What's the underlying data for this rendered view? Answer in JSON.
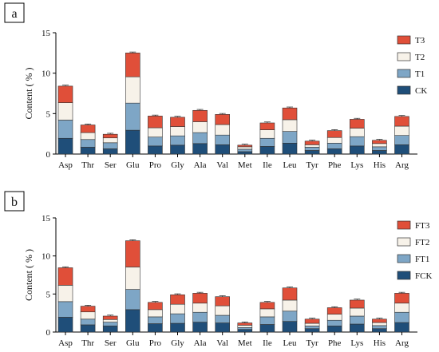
{
  "chart_data": [
    {
      "type": "bar",
      "stacked": true,
      "panel_label": "a",
      "ylabel": "Content ( % )",
      "xlabel": "",
      "ylim": [
        0,
        15
      ],
      "yticks": [
        "0",
        "5",
        "10",
        "15"
      ],
      "grid": false,
      "legend_position": "top-right",
      "categories": [
        "Asp",
        "Thr",
        "Ser",
        "Glu",
        "Pro",
        "Gly",
        "Ala",
        "Val",
        "Met",
        "Ile",
        "Leu",
        "Tyr",
        "Phe",
        "Lys",
        "His",
        "Arg"
      ],
      "series": [
        {
          "name": "CK",
          "color": "#1f4e79",
          "values": [
            1.95,
            0.85,
            0.65,
            2.95,
            1.0,
            1.1,
            1.3,
            1.15,
            0.3,
            0.95,
            1.35,
            0.45,
            0.65,
            1.0,
            0.45,
            1.15
          ]
        },
        {
          "name": "T1",
          "color": "#7ea6c6",
          "values": [
            2.25,
            0.95,
            0.75,
            3.35,
            1.1,
            1.15,
            1.35,
            1.2,
            0.3,
            1.0,
            1.45,
            0.4,
            0.7,
            1.15,
            0.45,
            1.15
          ]
        },
        {
          "name": "T2",
          "color": "#f7f2e9",
          "values": [
            2.15,
            0.85,
            0.6,
            3.25,
            1.15,
            1.15,
            1.35,
            1.3,
            0.3,
            1.05,
            1.45,
            0.3,
            0.7,
            1.05,
            0.4,
            1.15
          ]
        },
        {
          "name": "T3",
          "color": "#e04f39",
          "values": [
            2.05,
            0.95,
            0.45,
            2.95,
            1.45,
            1.15,
            1.4,
            1.25,
            0.2,
            0.85,
            1.45,
            0.45,
            0.85,
            1.1,
            0.4,
            1.2
          ]
        }
      ]
    },
    {
      "type": "bar",
      "stacked": true,
      "panel_label": "b",
      "ylabel": "Content ( % )",
      "xlabel": "",
      "ylim": [
        0,
        15
      ],
      "yticks": [
        "0",
        "5",
        "10",
        "15"
      ],
      "grid": false,
      "legend_position": "top-right",
      "categories": [
        "Asp",
        "Thr",
        "Ser",
        "Glu",
        "Pro",
        "Gly",
        "Ala",
        "Val",
        "Met",
        "Ile",
        "Leu",
        "Tyr",
        "Phe",
        "Lys",
        "His",
        "Arg"
      ],
      "series": [
        {
          "name": "FCK",
          "color": "#1f4e79",
          "values": [
            1.95,
            0.95,
            0.8,
            2.95,
            1.1,
            1.15,
            1.3,
            1.2,
            0.35,
            1.0,
            1.4,
            0.45,
            0.8,
            1.05,
            0.45,
            1.25
          ]
        },
        {
          "name": "FT1",
          "color": "#7ea6c6",
          "values": [
            2.05,
            0.75,
            0.5,
            2.65,
            0.9,
            1.25,
            1.3,
            1.0,
            0.25,
            1.0,
            1.35,
            0.35,
            0.75,
            1.05,
            0.4,
            1.35
          ]
        },
        {
          "name": "FT2",
          "color": "#f7f2e9",
          "values": [
            2.15,
            0.95,
            0.35,
            2.95,
            0.95,
            1.25,
            1.2,
            1.25,
            0.3,
            1.05,
            1.45,
            0.35,
            0.8,
            1.05,
            0.4,
            1.2
          ]
        },
        {
          "name": "FT3",
          "color": "#e04f39",
          "values": [
            2.3,
            0.75,
            0.45,
            3.45,
            0.95,
            1.25,
            1.3,
            1.2,
            0.3,
            0.85,
            1.6,
            0.55,
            0.85,
            1.05,
            0.45,
            1.3
          ]
        }
      ]
    }
  ]
}
